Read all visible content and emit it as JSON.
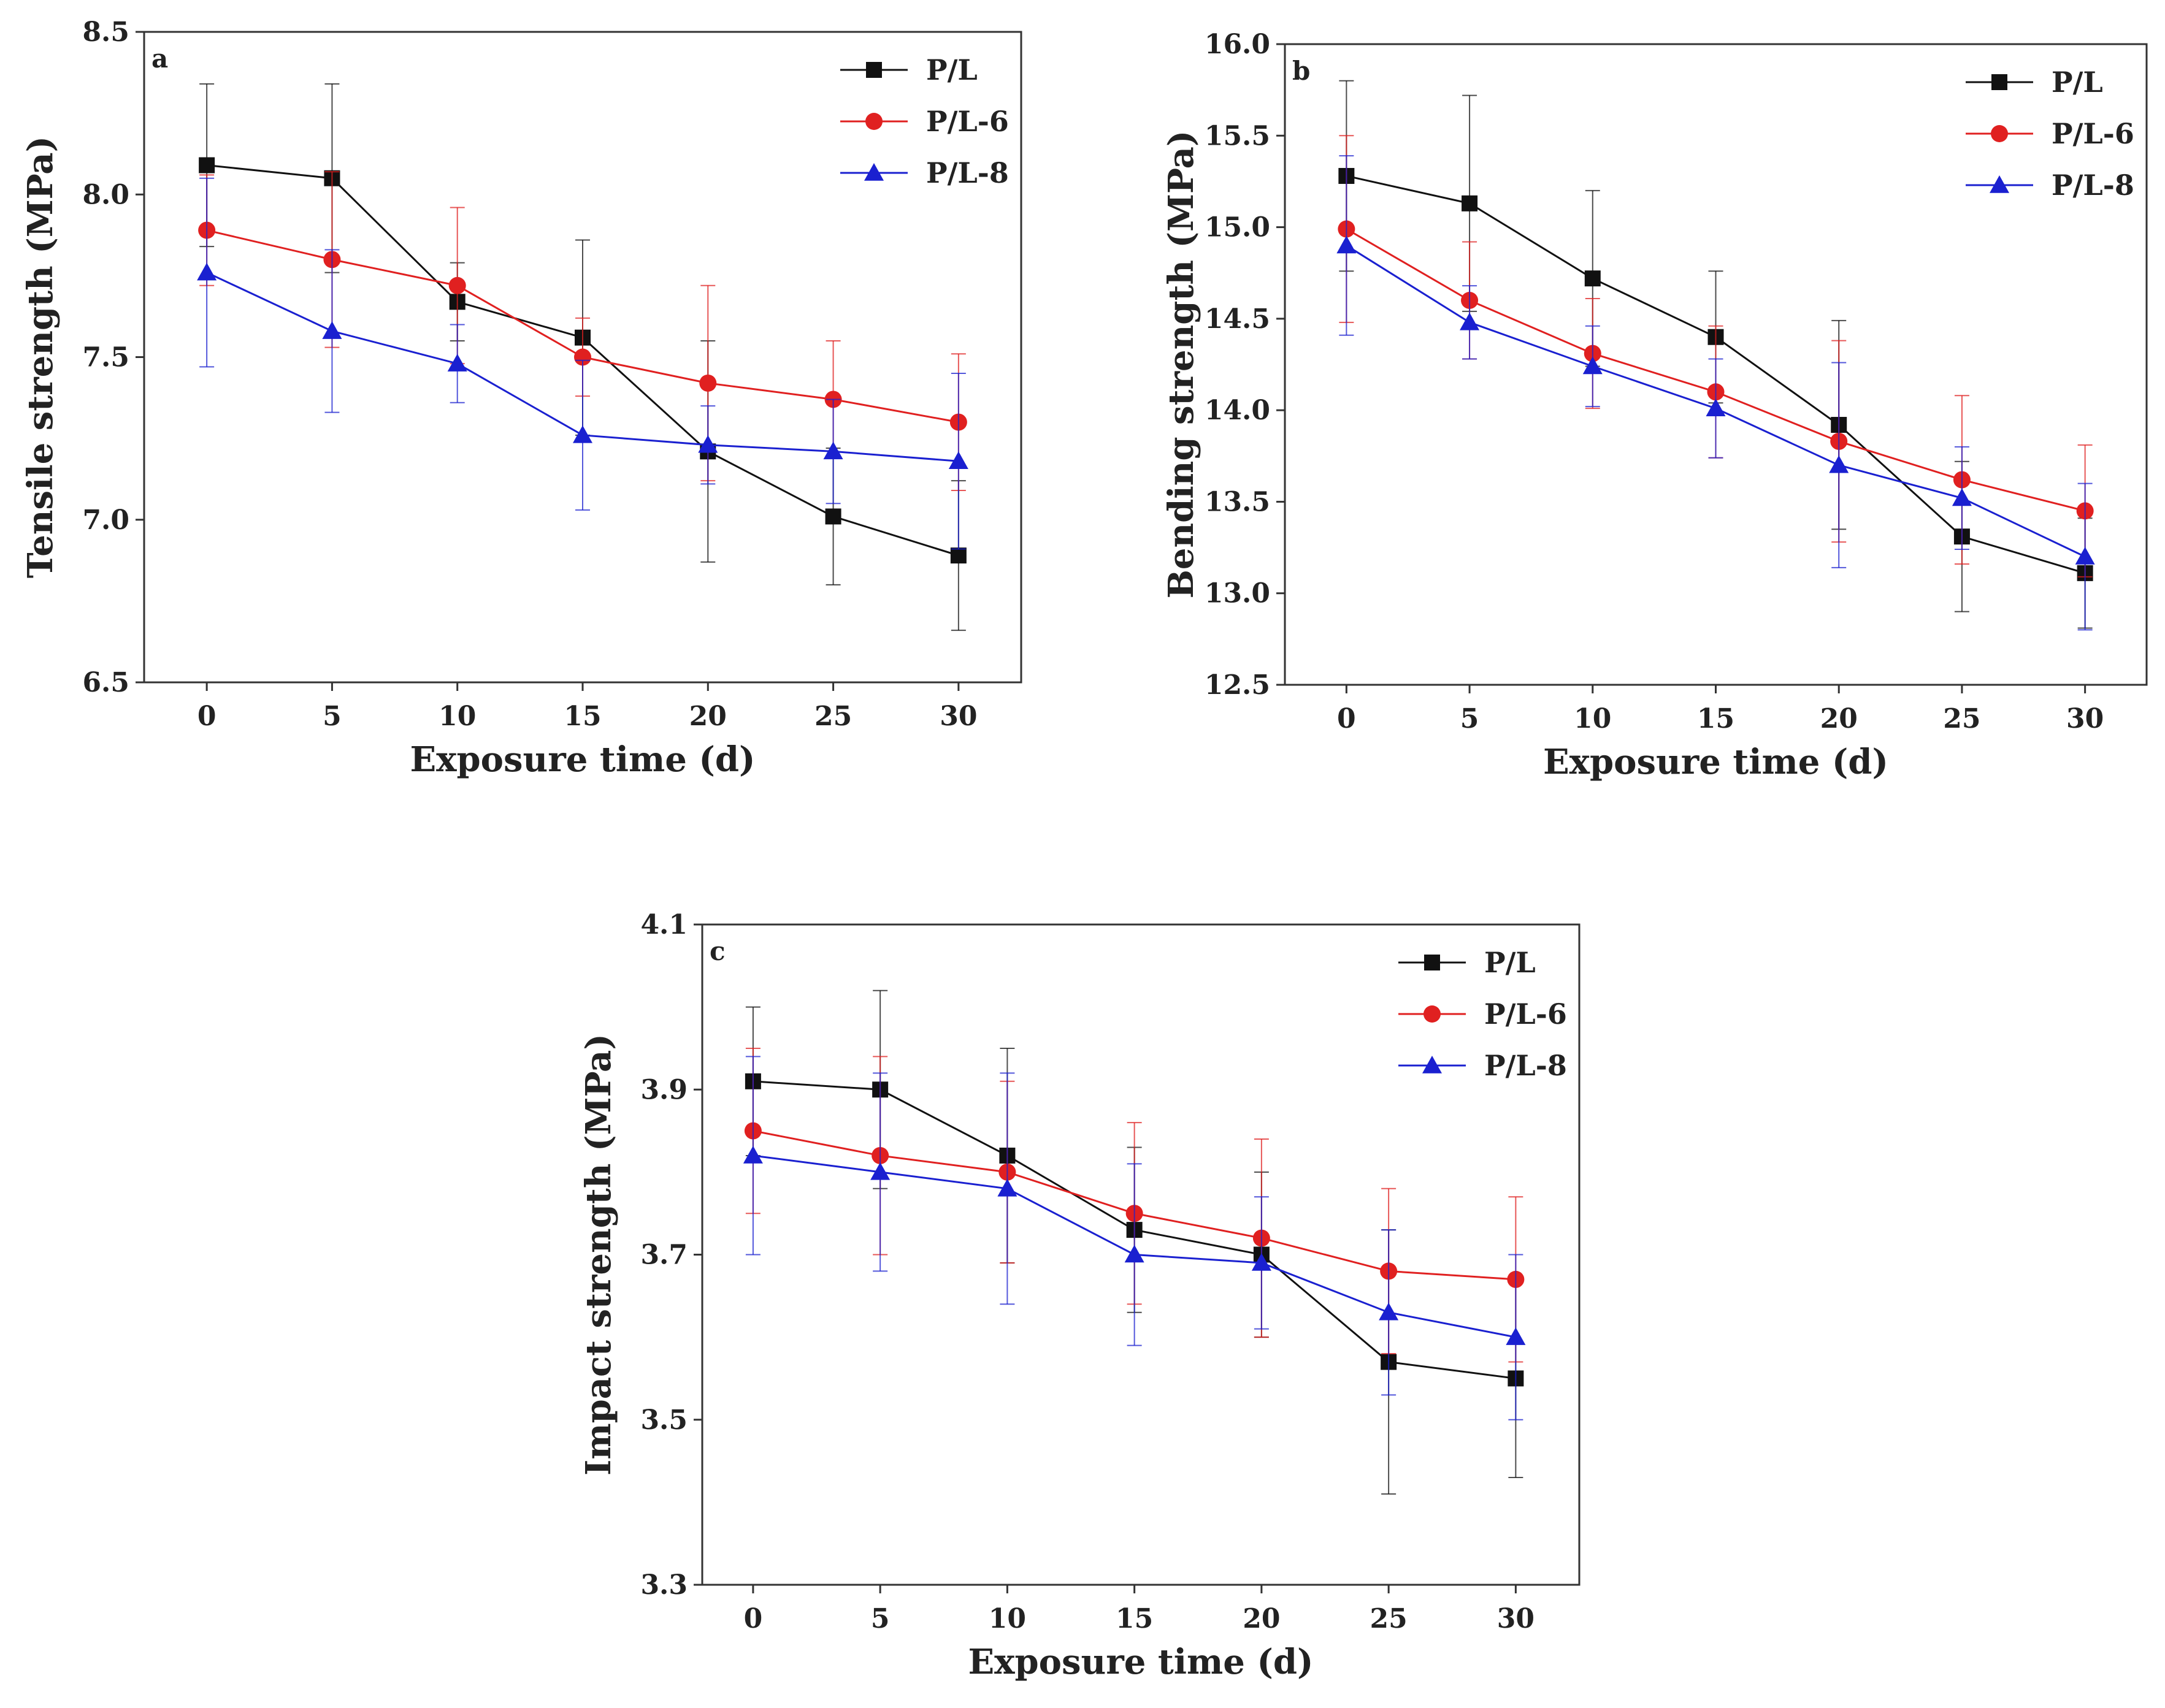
{
  "colors": {
    "P/L": "#111111",
    "P/L-6": "#e02020",
    "P/L-8": "#1a20d0",
    "axis": "#333333",
    "background": "#ffffff"
  },
  "chart_data": [
    {
      "type": "line",
      "panel": "a",
      "xlabel": "Exposure time (d)",
      "ylabel": "Tensile strength (MPa)",
      "xlim": [
        -2.5,
        32.5
      ],
      "ylim": [
        6.5,
        8.5
      ],
      "xticks": [
        0,
        5,
        10,
        15,
        20,
        25,
        30
      ],
      "yticks": [
        6.5,
        7.0,
        7.5,
        8.0,
        8.5
      ],
      "x": [
        0,
        5,
        10,
        15,
        20,
        25,
        30
      ],
      "series": [
        {
          "name": "P/L",
          "marker": "square",
          "values": [
            8.09,
            8.05,
            7.67,
            7.56,
            7.21,
            7.01,
            6.89
          ],
          "errors": [
            0.25,
            0.29,
            0.12,
            0.3,
            0.34,
            0.21,
            0.23
          ]
        },
        {
          "name": "P/L-6",
          "marker": "circle",
          "values": [
            7.89,
            7.8,
            7.72,
            7.5,
            7.42,
            7.37,
            7.3
          ],
          "errors": [
            0.17,
            0.27,
            0.24,
            0.12,
            0.3,
            0.18,
            0.21
          ]
        },
        {
          "name": "P/L-8",
          "marker": "triangle",
          "values": [
            7.76,
            7.58,
            7.48,
            7.26,
            7.23,
            7.21,
            7.18
          ],
          "errors": [
            0.29,
            0.25,
            0.12,
            0.23,
            0.12,
            0.16,
            0.27
          ]
        }
      ],
      "legend": "top-right"
    },
    {
      "type": "line",
      "panel": "b",
      "xlabel": "Exposure time (d)",
      "ylabel": "Bending strength (MPa)",
      "xlim": [
        -2.5,
        32.5
      ],
      "ylim": [
        12.5,
        16.0
      ],
      "xticks": [
        0,
        5,
        10,
        15,
        20,
        25,
        30
      ],
      "yticks": [
        12.5,
        13.0,
        13.5,
        14.0,
        14.5,
        15.0,
        15.5,
        16.0
      ],
      "x": [
        0,
        5,
        10,
        15,
        20,
        25,
        30
      ],
      "series": [
        {
          "name": "P/L",
          "marker": "square",
          "values": [
            15.28,
            15.13,
            14.72,
            14.4,
            13.92,
            13.31,
            13.11
          ],
          "errors": [
            0.52,
            0.59,
            0.48,
            0.36,
            0.57,
            0.41,
            0.3
          ]
        },
        {
          "name": "P/L-6",
          "marker": "circle",
          "values": [
            14.99,
            14.6,
            14.31,
            14.1,
            13.83,
            13.62,
            13.45
          ],
          "errors": [
            0.51,
            0.32,
            0.3,
            0.36,
            0.55,
            0.46,
            0.36
          ]
        },
        {
          "name": "P/L-8",
          "marker": "triangle",
          "values": [
            14.9,
            14.48,
            14.24,
            14.01,
            13.7,
            13.52,
            13.2
          ],
          "errors": [
            0.49,
            0.2,
            0.22,
            0.27,
            0.56,
            0.28,
            0.4
          ]
        }
      ],
      "legend": "top-right"
    },
    {
      "type": "line",
      "panel": "c",
      "xlabel": "Exposure time (d)",
      "ylabel": "Impact strength (MPa)",
      "xlim": [
        -2.0,
        32.5
      ],
      "ylim": [
        3.3,
        4.1
      ],
      "xticks": [
        0,
        5,
        10,
        15,
        20,
        25,
        30
      ],
      "yticks": [
        3.3,
        3.5,
        3.7,
        3.9,
        4.1
      ],
      "x": [
        0,
        5,
        10,
        15,
        20,
        25,
        30
      ],
      "series": [
        {
          "name": "P/L",
          "marker": "square",
          "values": [
            3.91,
            3.9,
            3.82,
            3.73,
            3.7,
            3.57,
            3.55
          ],
          "errors": [
            0.09,
            0.12,
            0.13,
            0.1,
            0.1,
            0.16,
            0.12
          ]
        },
        {
          "name": "P/L-6",
          "marker": "circle",
          "values": [
            3.85,
            3.82,
            3.8,
            3.75,
            3.72,
            3.68,
            3.67
          ],
          "errors": [
            0.1,
            0.12,
            0.11,
            0.11,
            0.12,
            0.1,
            0.1
          ]
        },
        {
          "name": "P/L-8",
          "marker": "triangle",
          "values": [
            3.82,
            3.8,
            3.78,
            3.7,
            3.69,
            3.63,
            3.6
          ],
          "errors": [
            0.12,
            0.12,
            0.14,
            0.11,
            0.08,
            0.1,
            0.1
          ]
        }
      ],
      "legend": "top-right"
    }
  ]
}
